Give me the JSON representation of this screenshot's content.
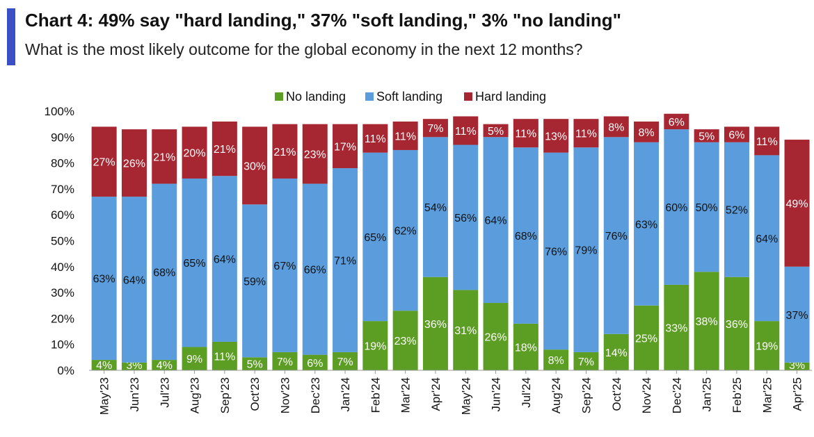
{
  "header": {
    "title": "Chart 4: 49% say \"hard landing,\" 37% \"soft landing,\" 3% \"no landing\"",
    "subtitle": "What is the most likely outcome for the global economy in the next 12 months?"
  },
  "colors": {
    "no": "#5c9e23",
    "soft": "#5b9ddc",
    "hard": "#a62631",
    "accent": "#3b4fc4"
  },
  "chart_data": {
    "type": "bar",
    "stacked": true,
    "categories": [
      "May'23",
      "Jun'23",
      "Jul'23",
      "Aug'23",
      "Sep'23",
      "Oct'23",
      "Nov'23",
      "Dec'23",
      "Jan'24",
      "Feb'24",
      "Mar'24",
      "Apr'24",
      "May'24",
      "Jun'24",
      "Jul'24",
      "Aug'24",
      "Sep'24",
      "Oct'24",
      "Nov'24",
      "Dec'24",
      "Jan'25",
      "Feb'25",
      "Mar'25",
      "Apr'25"
    ],
    "series": [
      {
        "name": "No landing",
        "key": "no",
        "values": [
          4,
          3,
          4,
          9,
          11,
          5,
          7,
          6,
          7,
          19,
          23,
          36,
          31,
          26,
          18,
          8,
          7,
          14,
          25,
          33,
          38,
          36,
          19,
          3
        ]
      },
      {
        "name": "Soft landing",
        "key": "soft",
        "values": [
          63,
          64,
          68,
          65,
          64,
          59,
          67,
          66,
          71,
          65,
          62,
          54,
          56,
          64,
          68,
          76,
          79,
          76,
          63,
          60,
          50,
          52,
          64,
          37
        ]
      },
      {
        "name": "Hard landing",
        "key": "hard",
        "values": [
          27,
          26,
          21,
          20,
          21,
          30,
          21,
          23,
          17,
          11,
          11,
          7,
          11,
          5,
          11,
          13,
          11,
          8,
          8,
          6,
          5,
          6,
          11,
          49
        ]
      }
    ],
    "yticks": [
      "0%",
      "10%",
      "20%",
      "30%",
      "40%",
      "50%",
      "60%",
      "70%",
      "80%",
      "90%",
      "100%"
    ],
    "ylim": [
      0,
      100
    ],
    "legend_position": "top-center",
    "grid": false
  }
}
